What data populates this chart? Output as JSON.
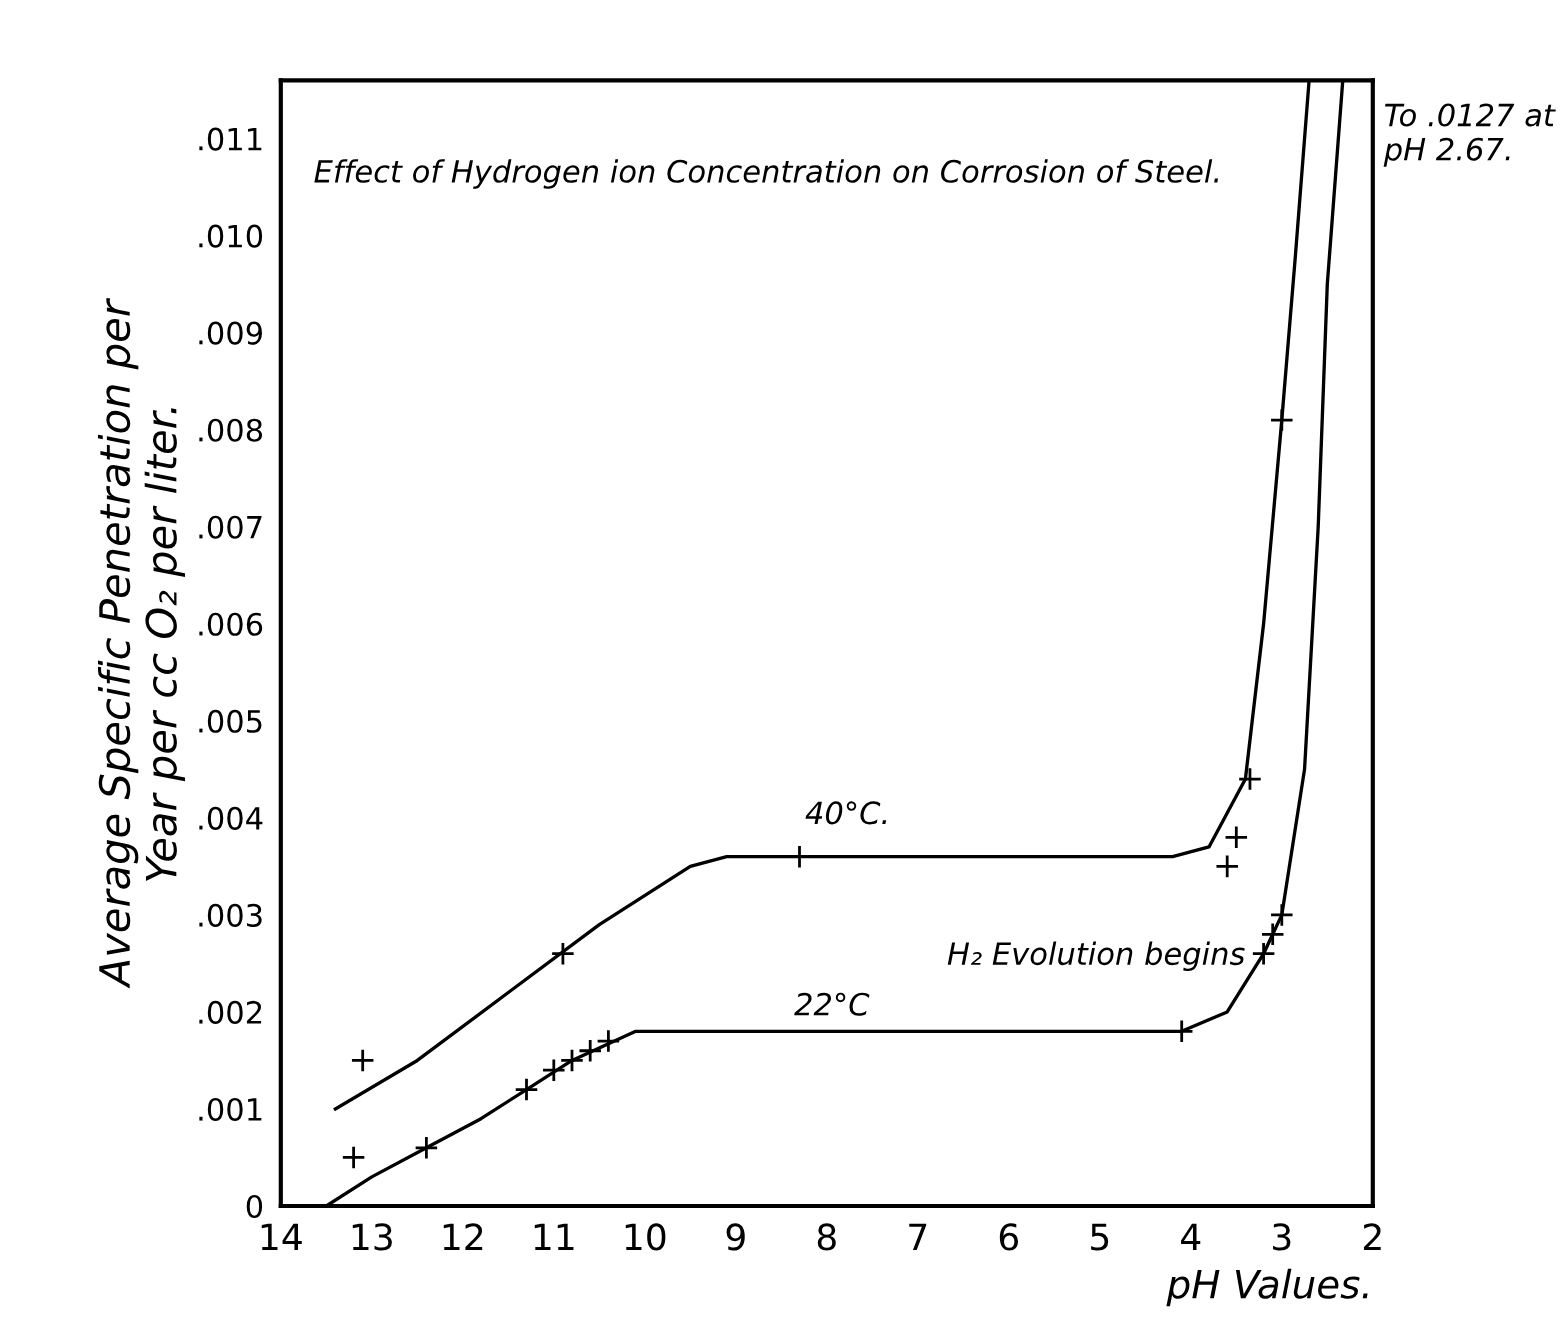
{
  "chart_data": {
    "type": "line",
    "title": "Effect of Hydrogen ion Concentration on Corrosion of Steel.",
    "xlabel": "pH Values.",
    "ylabel": "Average Specific Penetration per\nYear per cc O₂ per liter.",
    "xlim": [
      14,
      2
    ],
    "ylim": [
      0,
      0.0116
    ],
    "xticks": [
      14,
      13,
      12,
      11,
      10,
      9,
      8,
      7,
      6,
      5,
      4,
      3,
      2
    ],
    "yticks": [
      0,
      {
        "value": 0.001,
        "label": ".001"
      },
      {
        "value": 0.002,
        "label": ".002"
      },
      {
        "value": 0.003,
        "label": ".003"
      },
      {
        "value": 0.004,
        "label": ".004"
      },
      {
        "value": 0.005,
        "label": ".005"
      },
      {
        "value": 0.006,
        "label": ".006"
      },
      {
        "value": 0.007,
        "label": ".007"
      },
      {
        "value": 0.008,
        "label": ".008"
      },
      {
        "value": 0.009,
        "label": ".009"
      },
      {
        "value": 0.01,
        "label": ".010"
      },
      {
        "value": 0.011,
        "label": ".011"
      }
    ],
    "grid": false,
    "legend": false,
    "series": [
      {
        "color": "#000000",
        "x": [
          13.4,
          12.5,
          11.5,
          10.5,
          9.5,
          9.1,
          8.3,
          7,
          6,
          5,
          4.2,
          3.8,
          3.4,
          3.2,
          3.0,
          2.85,
          2.7
        ],
        "values": [
          0.001,
          0.0015,
          0.0022,
          0.0029,
          0.0035,
          0.0036,
          0.0036,
          0.0036,
          0.0036,
          0.0036,
          0.0036,
          0.0037,
          0.0044,
          0.006,
          0.0081,
          0.0098,
          0.0116
        ]
      },
      {
        "type": "scatter",
        "color": "#000000",
        "marker": "cross",
        "x": [
          13.1,
          10.9,
          8.3,
          3.6,
          3.5,
          3.35,
          3.0
        ],
        "values": [
          0.0015,
          0.0026,
          0.0036,
          0.0035,
          0.0038,
          0.0044,
          0.0081
        ]
      },
      {
        "color": "#000000",
        "x": [
          13.5,
          13,
          12.4,
          11.8,
          11.3,
          10.8,
          10.1,
          9,
          8,
          7,
          6,
          5,
          4.1,
          3.6,
          3.2,
          3.0,
          2.75,
          2.6,
          2.5,
          2.33
        ],
        "values": [
          0,
          0.0003,
          0.0006,
          0.0009,
          0.0012,
          0.0015,
          0.0018,
          0.0018,
          0.0018,
          0.0018,
          0.0018,
          0.0018,
          0.0018,
          0.002,
          0.0026,
          0.003,
          0.0045,
          0.007,
          0.0095,
          0.0116
        ]
      },
      {
        "type": "scatter",
        "color": "#000000",
        "marker": "cross",
        "x": [
          13.2,
          12.4,
          11.3,
          11.0,
          10.8,
          10.6,
          10.4,
          4.1,
          3.2,
          3.1,
          3.0
        ],
        "values": [
          0.0005,
          0.0006,
          0.0012,
          0.0014,
          0.0015,
          0.0016,
          0.0017,
          0.0018,
          0.0026,
          0.0028,
          0.003
        ]
      }
    ],
    "annotations": [
      "40°C.",
      "22°C",
      "H₂ Evolution begins",
      "To .0127 at pH 2.67."
    ]
  }
}
